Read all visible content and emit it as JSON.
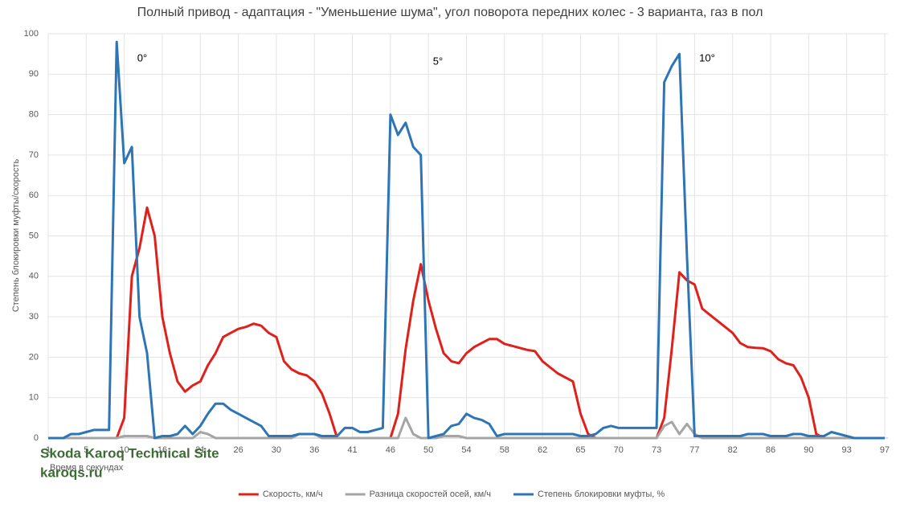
{
  "chart_data": {
    "type": "line",
    "title": "Полный привод - адаптация - \"Уменьшение шума\",  угол поворота передних колес  - 3 варианта, газ в пол",
    "y_label": "Степень блокировки муфты/скорость",
    "x_label": "Время в секундах",
    "annotations": [
      "0°",
      "5°",
      "10°"
    ],
    "watermark": [
      "Skoda Karoq Technical Site",
      "karoqs.ru"
    ],
    "grid": true,
    "legend": "bottom",
    "ylim": [
      0,
      100
    ],
    "yticks": [
      0,
      10,
      20,
      30,
      40,
      50,
      60,
      70,
      80,
      90,
      100
    ],
    "categories": [
      "1",
      null,
      null,
      null,
      null,
      "5",
      null,
      null,
      null,
      null,
      "10",
      null,
      null,
      null,
      null,
      "16",
      null,
      null,
      null,
      null,
      "21",
      null,
      null,
      null,
      null,
      "26",
      null,
      null,
      null,
      null,
      "30",
      null,
      null,
      null,
      null,
      "36",
      null,
      null,
      null,
      null,
      "41",
      null,
      null,
      null,
      null,
      "46",
      null,
      null,
      null,
      null,
      "50",
      null,
      null,
      null,
      null,
      "54",
      null,
      null,
      null,
      null,
      "58",
      null,
      null,
      null,
      null,
      "62",
      null,
      null,
      null,
      null,
      "65",
      null,
      null,
      null,
      null,
      "70",
      null,
      null,
      null,
      null,
      "73",
      null,
      null,
      null,
      null,
      "77",
      null,
      null,
      null,
      null,
      "82",
      null,
      null,
      null,
      null,
      "86",
      null,
      null,
      null,
      null,
      "90",
      null,
      null,
      null,
      null,
      "93",
      null,
      null,
      null,
      null,
      "97"
    ],
    "series": [
      {
        "name": "Скорость, км/ч",
        "color": "#e0201b",
        "values": [
          0,
          0,
          0,
          0,
          0,
          0,
          0,
          0,
          0,
          0,
          5,
          40,
          47,
          57,
          50,
          30,
          21,
          14,
          11.5,
          13,
          14,
          18,
          21,
          25,
          26,
          27,
          27.5,
          28.3,
          27.8,
          26,
          25,
          19,
          17,
          16,
          15.5,
          14,
          11,
          6,
          0,
          0,
          0,
          0,
          0,
          0,
          0,
          0,
          6,
          22,
          34,
          43,
          34,
          27,
          21,
          19,
          18.5,
          21,
          22.5,
          23.5,
          24.5,
          24.5,
          23.3,
          22.8,
          22.3,
          21.8,
          21.5,
          19,
          17.5,
          16,
          15,
          14,
          6,
          1,
          0,
          0,
          0,
          0,
          0,
          0,
          0,
          0,
          0,
          5,
          22,
          41,
          39,
          38,
          32,
          30.5,
          29,
          27.5,
          26,
          23.5,
          22.5,
          22.3,
          22.2,
          21.5,
          19.5,
          18.5,
          18,
          15,
          10,
          1,
          0,
          0,
          0,
          0,
          0,
          0,
          0,
          0,
          0
        ]
      },
      {
        "name": "Разница скоростей осей, км/ч",
        "color": "#a5a5a5",
        "values": [
          0,
          0,
          0,
          0,
          0,
          0,
          0,
          0,
          0,
          0,
          0.5,
          0.5,
          0.5,
          0.5,
          0,
          0,
          0,
          0,
          0,
          0,
          1.5,
          1,
          0,
          0,
          0,
          0,
          0,
          0,
          0,
          0,
          0,
          0,
          0,
          1,
          1,
          1,
          0,
          0,
          0,
          0,
          0,
          0,
          0,
          0,
          0,
          0,
          0,
          5,
          1,
          0,
          0,
          0,
          0.5,
          0.5,
          0.5,
          0,
          0,
          0,
          0,
          0,
          0,
          0,
          0,
          0,
          0,
          0,
          0,
          0,
          0,
          0,
          0,
          0,
          0,
          0,
          0,
          0,
          0,
          0,
          0,
          0,
          0,
          3,
          4,
          1,
          3.5,
          1,
          0,
          0,
          0,
          0,
          0,
          0,
          0,
          0,
          0,
          0,
          0,
          0,
          0,
          0,
          0,
          0,
          0,
          0,
          0,
          0,
          0,
          0,
          0,
          0,
          0
        ]
      },
      {
        "name": "Степень блокировки муфты, %",
        "color": "#2e75b6",
        "values": [
          0,
          0,
          0,
          1,
          1,
          1.5,
          2,
          2,
          2,
          98,
          68,
          72,
          30,
          21,
          0,
          0.5,
          0.5,
          1,
          3,
          1,
          3,
          6,
          8.5,
          8.5,
          7,
          6,
          5,
          4,
          3,
          0.5,
          0.5,
          0.5,
          0.5,
          1,
          1,
          1,
          0.5,
          0.5,
          0.5,
          2.5,
          2.5,
          1.5,
          1.5,
          2,
          2.5,
          80,
          75,
          78,
          72,
          70,
          0,
          0.5,
          1,
          3,
          3.5,
          6,
          5,
          4.5,
          3.5,
          0.5,
          1,
          1,
          1,
          1,
          1,
          1,
          1,
          1,
          1,
          1,
          0.5,
          0.5,
          1,
          2.5,
          3,
          2.5,
          2.5,
          2.5,
          2.5,
          2.5,
          2.5,
          88,
          92,
          95,
          45,
          0.5,
          0.5,
          0.5,
          0.5,
          0.5,
          0.5,
          0.5,
          1,
          1,
          1,
          0.5,
          0.5,
          0.5,
          1,
          1,
          0.5,
          0.5,
          0.5,
          1.5,
          1,
          0.5,
          0,
          0,
          0,
          0,
          0
        ]
      }
    ]
  }
}
